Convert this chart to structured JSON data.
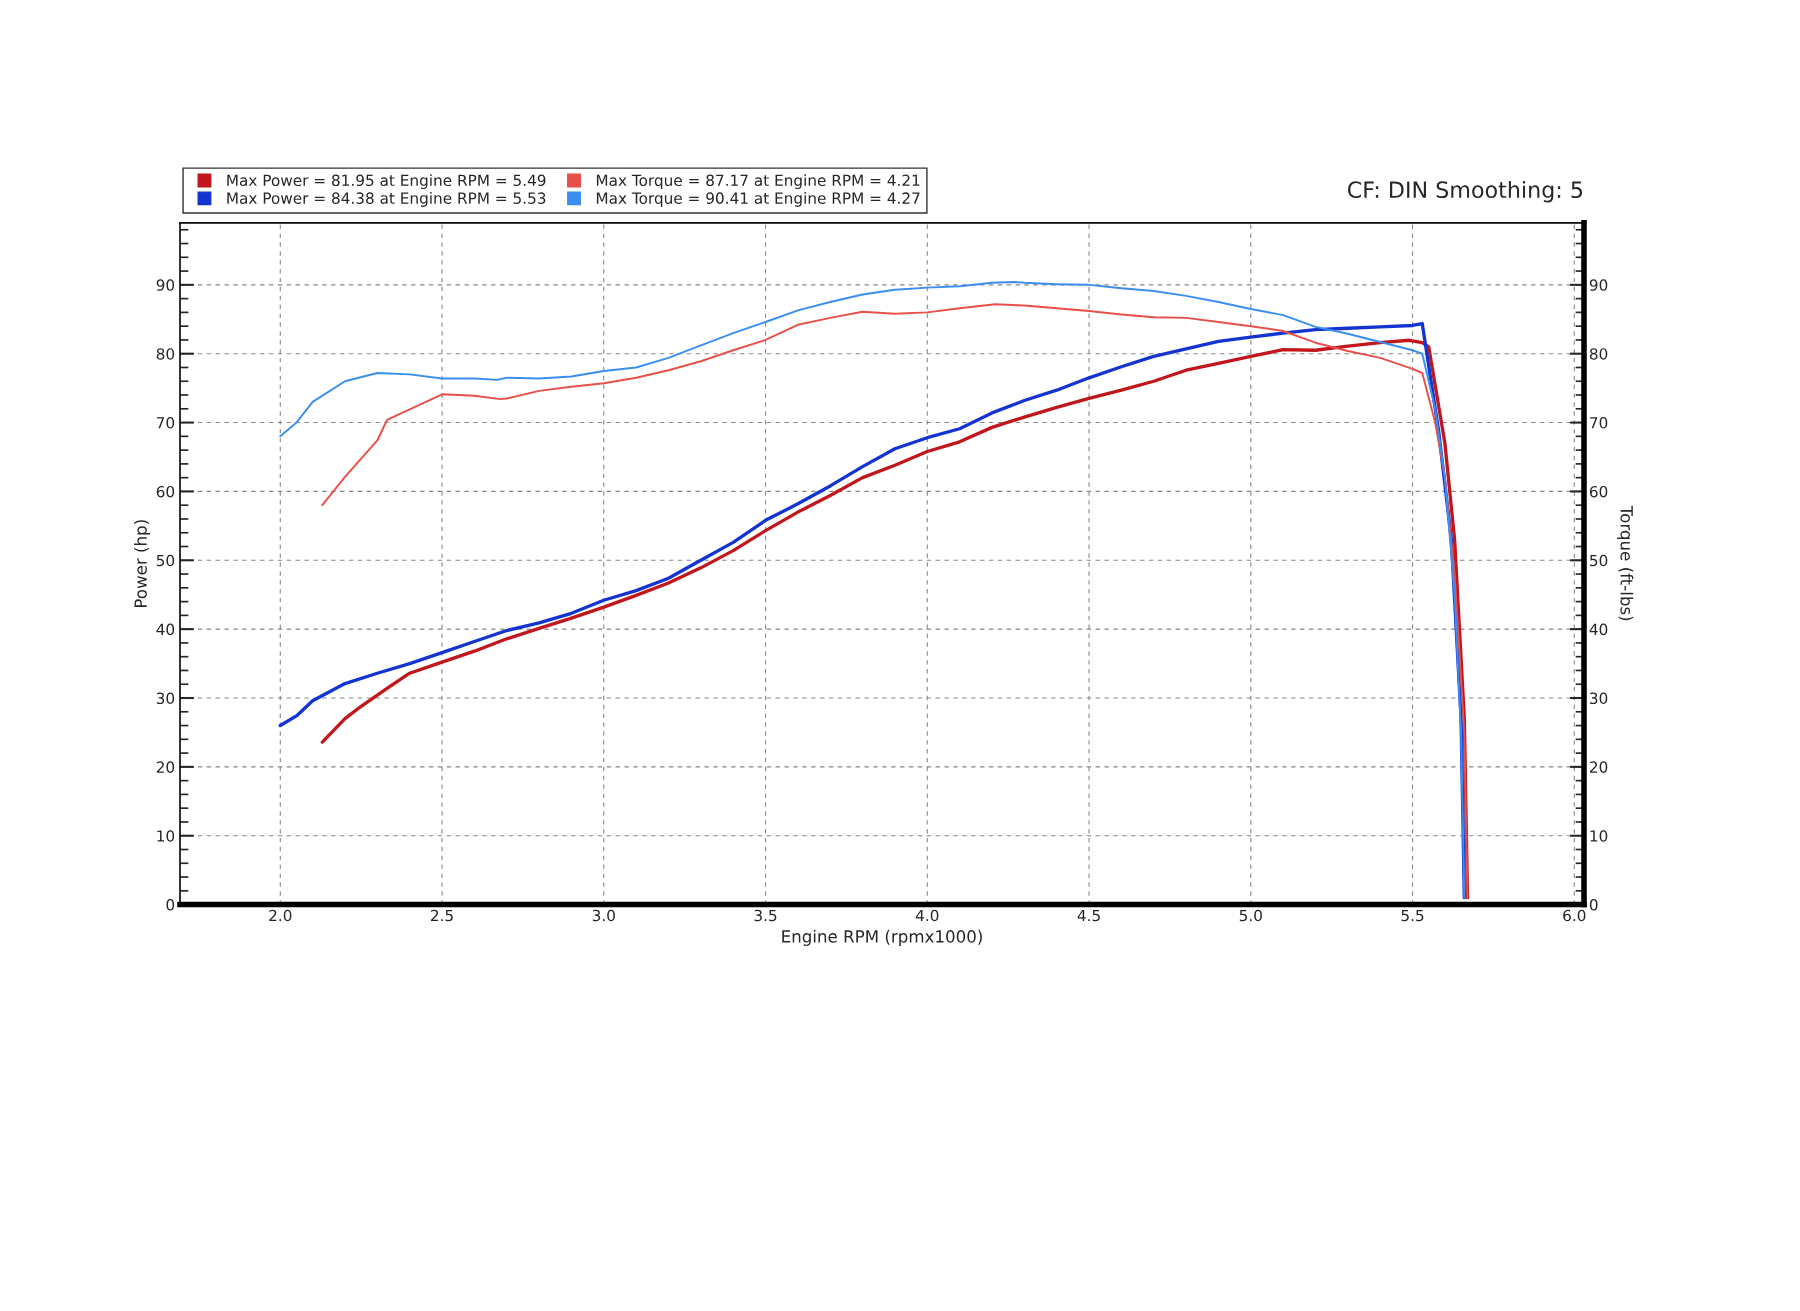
{
  "chart_data": {
    "type": "line",
    "xlabel": "Engine RPM (rpmx1000)",
    "ylabel": "Power (hp)",
    "y2label": "Torque (ft-lbs)",
    "annotations": [
      "CF: DIN Smoothing: 5"
    ],
    "xlim": [
      1.69,
      6.03
    ],
    "ylim": [
      0,
      99
    ],
    "y2lim": [
      0,
      99
    ],
    "xticks": [
      {
        "value": 2,
        "label": "2.0"
      },
      2.5,
      {
        "value": 3,
        "label": "3.0"
      },
      3.5,
      {
        "value": 4,
        "label": "4.0"
      },
      4.5,
      {
        "value": 5,
        "label": "5.0"
      },
      5.5,
      {
        "value": 6,
        "label": "6.0"
      }
    ],
    "yticks": [
      0,
      10,
      20,
      30,
      40,
      50,
      60,
      70,
      80,
      90
    ],
    "y2ticks": [
      0,
      10,
      20,
      30,
      40,
      50,
      60,
      70,
      80,
      90
    ],
    "grid": true,
    "legend": "top left",
    "marker": "none",
    "line_style": "solid",
    "series": [
      {
        "name": "Max Power = 81.95 at Engine RPM = 5.49",
        "color": "#c0161c",
        "x": [
          2.13,
          2.2,
          2.25,
          2.33,
          2.4,
          2.5,
          2.6,
          2.7,
          2.8,
          2.9,
          3.0,
          3.1,
          3.2,
          3.3,
          3.4,
          3.5,
          3.6,
          3.7,
          3.8,
          3.9,
          4.0,
          4.1,
          4.2,
          4.3,
          4.4,
          4.5,
          4.6,
          4.7,
          4.8,
          4.9,
          5.0,
          5.1,
          5.2,
          5.3,
          5.4,
          5.49,
          5.53,
          5.55,
          5.6,
          5.63,
          5.66,
          5.67
        ],
        "values": [
          23.6,
          27,
          28.8,
          31.4,
          33.6,
          35.2,
          36.8,
          38.6,
          40.1,
          41.6,
          43.2,
          44.9,
          46.7,
          48.9,
          51.4,
          54.3,
          57,
          59.4,
          62,
          63.8,
          65.8,
          67.2,
          69.3,
          70.8,
          72.2,
          73.5,
          74.7,
          76,
          77.6,
          78.6,
          79.6,
          80.6,
          80.5,
          81.1,
          81.6,
          81.95,
          81.6,
          81,
          67,
          53,
          27,
          1
        ]
      },
      {
        "name": "Max Power = 84.38 at Engine RPM = 5.53",
        "color": "#1434d2",
        "x": [
          2.0,
          2.05,
          2.1,
          2.2,
          2.3,
          2.4,
          2.5,
          2.6,
          2.7,
          2.8,
          2.9,
          3.0,
          3.1,
          3.2,
          3.3,
          3.4,
          3.5,
          3.6,
          3.7,
          3.8,
          3.9,
          4.0,
          4.1,
          4.2,
          4.3,
          4.4,
          4.5,
          4.6,
          4.7,
          4.8,
          4.9,
          5.0,
          5.1,
          5.2,
          5.3,
          5.4,
          5.5,
          5.53,
          5.58,
          5.62,
          5.65,
          5.66
        ],
        "values": [
          26,
          27.4,
          29.6,
          32.1,
          33.6,
          35,
          36.6,
          38.2,
          39.8,
          40.9,
          42.3,
          44.2,
          45.6,
          47.4,
          50,
          52.6,
          55.8,
          58.2,
          60.8,
          63.6,
          66.2,
          67.8,
          69.1,
          71.4,
          73.2,
          74.7,
          76.5,
          78.1,
          79.6,
          80.7,
          81.8,
          82.4,
          83,
          83.5,
          83.7,
          83.9,
          84.1,
          84.38,
          69,
          53,
          27,
          1
        ]
      },
      {
        "name": "Max Torque = 87.17 at Engine RPM = 4.21",
        "color": "#e8504a",
        "axis": "y2",
        "x": [
          2.13,
          2.2,
          2.3,
          2.33,
          2.4,
          2.5,
          2.6,
          2.68,
          2.7,
          2.8,
          2.9,
          3.0,
          3.1,
          3.2,
          3.3,
          3.4,
          3.5,
          3.6,
          3.7,
          3.8,
          3.9,
          4.0,
          4.1,
          4.21,
          4.3,
          4.4,
          4.5,
          4.6,
          4.7,
          4.8,
          4.9,
          5.0,
          5.1,
          5.2,
          5.3,
          5.4,
          5.5,
          5.53,
          5.57,
          5.6,
          5.63,
          5.66,
          5.67
        ],
        "values": [
          58,
          62.1,
          67.4,
          70.4,
          71.9,
          74.1,
          73.9,
          73.4,
          73.5,
          74.6,
          75.2,
          75.7,
          76.5,
          77.6,
          78.9,
          80.5,
          82,
          84.2,
          85.2,
          86.1,
          85.8,
          86,
          86.6,
          87.17,
          87,
          86.6,
          86.2,
          85.7,
          85.3,
          85.2,
          84.6,
          84,
          83.3,
          81.6,
          80.4,
          79.4,
          77.8,
          77.2,
          70,
          62,
          48,
          25,
          1
        ]
      },
      {
        "name": "Max Torque = 90.41 at Engine RPM = 4.27",
        "color": "#3a8ef0",
        "axis": "y2",
        "x": [
          2.0,
          2.05,
          2.1,
          2.2,
          2.3,
          2.4,
          2.5,
          2.6,
          2.67,
          2.7,
          2.8,
          2.9,
          3.0,
          3.1,
          3.2,
          3.3,
          3.4,
          3.5,
          3.6,
          3.7,
          3.8,
          3.9,
          4.0,
          4.1,
          4.2,
          4.27,
          4.3,
          4.4,
          4.5,
          4.6,
          4.7,
          4.8,
          4.9,
          5.0,
          5.1,
          5.2,
          5.3,
          5.4,
          5.5,
          5.53,
          5.57,
          5.6,
          5.63,
          5.65,
          5.66
        ],
        "values": [
          68,
          70,
          73,
          76,
          77.2,
          77,
          76.4,
          76.4,
          76.2,
          76.5,
          76.4,
          76.7,
          77.5,
          78,
          79.4,
          81.2,
          83,
          84.6,
          86.3,
          87.5,
          88.6,
          89.3,
          89.6,
          89.8,
          90.3,
          90.41,
          90.3,
          90.1,
          90,
          89.5,
          89.1,
          88.4,
          87.5,
          86.5,
          85.6,
          83.9,
          82.9,
          81.7,
          80.5,
          80,
          72,
          62,
          45,
          25,
          1
        ]
      }
    ]
  }
}
